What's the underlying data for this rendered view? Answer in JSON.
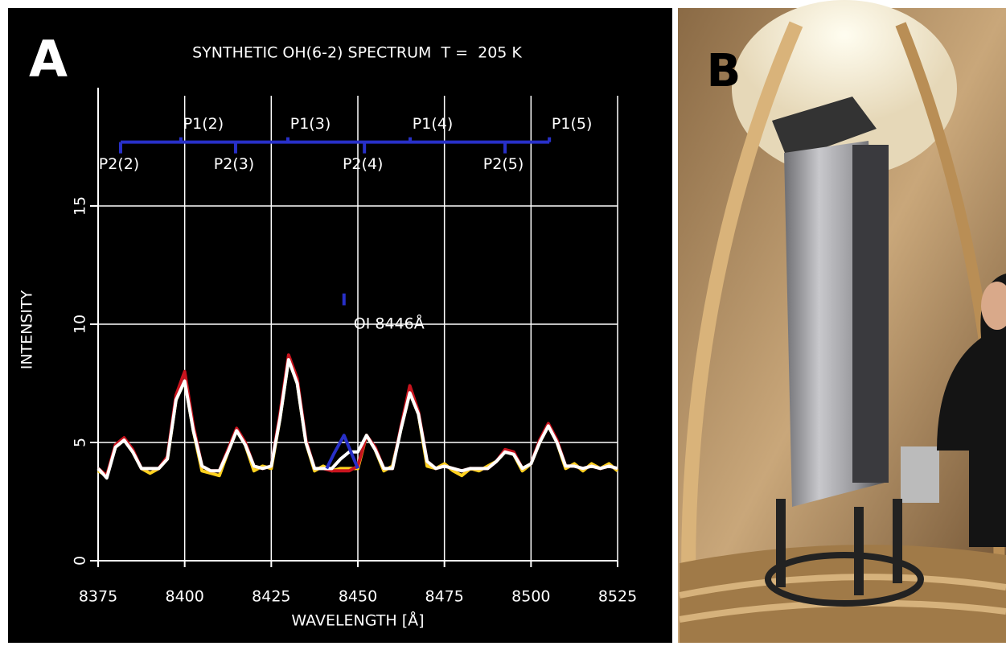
{
  "chart_data": {
    "type": "line",
    "panel_labels": [
      "A",
      "B"
    ],
    "title": "SYNTHETIC OH(6-2) SPECTRUM  T =  205 K",
    "xlabel": "WAVELENGTH [Å]",
    "ylabel": "INTENSITY",
    "xlim": [
      8375,
      8525
    ],
    "xticks": [
      8375,
      8400,
      8425,
      8450,
      8475,
      8500,
      8525
    ],
    "ylim": [
      0,
      20
    ],
    "yticks": [
      0,
      5,
      10,
      15
    ],
    "grid": true,
    "series": [
      {
        "color": "#ffd21f",
        "x": [
          8375,
          8377.5,
          8380,
          8382.5,
          8385,
          8387.5,
          8390,
          8392.5,
          8395,
          8397.5,
          8400,
          8402.5,
          8405,
          8407.5,
          8410,
          8412.5,
          8415,
          8417.5,
          8420,
          8422.5,
          8425,
          8427.5,
          8430,
          8432.5,
          8435,
          8437.5,
          8440,
          8442.5,
          8445,
          8447.5,
          8450,
          8452.5,
          8455,
          8457.5,
          8460,
          8462.5,
          8465,
          8467.5,
          8470,
          8472.5,
          8475,
          8477.5,
          8480,
          8482.5,
          8485,
          8487.5,
          8490,
          8492.5,
          8495,
          8497.5,
          8500,
          8502.5,
          8505,
          8507.5,
          8510,
          8512.5,
          8515,
          8517.5,
          8520,
          8522.5,
          8525
        ],
        "values": [
          3.8,
          3.6,
          4.8,
          5.1,
          4.6,
          3.9,
          3.7,
          3.9,
          4.3,
          6.8,
          7.6,
          5.5,
          3.8,
          3.7,
          3.6,
          4.6,
          5.5,
          4.9,
          3.8,
          4.0,
          3.9,
          6.0,
          8.5,
          7.5,
          5.0,
          3.8,
          4.0,
          3.8,
          3.9,
          3.9,
          3.9,
          5.3,
          4.7,
          3.8,
          4.0,
          5.6,
          7.1,
          6.2,
          4.0,
          3.9,
          4.1,
          3.8,
          3.6,
          3.9,
          3.8,
          4.0,
          4.2,
          4.6,
          4.5,
          3.8,
          4.1,
          5.0,
          5.7,
          5.0,
          3.9,
          4.1,
          3.8,
          4.1,
          3.9,
          4.1,
          3.8
        ]
      },
      {
        "color": "#c8141e",
        "x": [
          8375,
          8377.5,
          8380,
          8382.5,
          8385,
          8387.5,
          8390,
          8392.5,
          8395,
          8397.5,
          8400,
          8402.5,
          8405,
          8407.5,
          8410,
          8412.5,
          8415,
          8417.5,
          8420,
          8422.5,
          8425,
          8427.5,
          8430,
          8432.5,
          8435,
          8437.5,
          8440,
          8442.5,
          8445,
          8447.5,
          8450,
          8452.5,
          8455,
          8457.5,
          8460,
          8462.5,
          8465,
          8467.5,
          8470,
          8472.5,
          8475,
          8477.5,
          8480,
          8482.5,
          8485,
          8487.5,
          8490,
          8492.5,
          8495,
          8497.5,
          8500,
          8502.5,
          8505,
          8507.5,
          8510,
          8512.5,
          8515,
          8517.5,
          8520,
          8522.5,
          8525
        ],
        "values": [
          3.9,
          3.6,
          4.9,
          5.2,
          4.7,
          3.9,
          3.9,
          3.9,
          4.4,
          7.0,
          8.0,
          5.7,
          4.0,
          3.8,
          3.8,
          4.7,
          5.6,
          5.0,
          4.0,
          3.9,
          4.0,
          6.2,
          8.7,
          7.7,
          5.1,
          3.9,
          3.9,
          3.8,
          3.8,
          3.8,
          4.0,
          5.3,
          4.8,
          3.9,
          3.9,
          5.7,
          7.4,
          6.3,
          4.2,
          3.9,
          4.0,
          3.9,
          3.8,
          3.9,
          3.9,
          3.9,
          4.2,
          4.7,
          4.6,
          3.9,
          4.1,
          5.1,
          5.8,
          5.1,
          4.0,
          4.0,
          3.9,
          4.0,
          3.9,
          4.0,
          3.9
        ]
      },
      {
        "color": "#ffffff",
        "x": [
          8375,
          8377.5,
          8380,
          8382.5,
          8385,
          8387.5,
          8390,
          8392.5,
          8395,
          8397.5,
          8400,
          8402.5,
          8405,
          8407.5,
          8410,
          8412.5,
          8415,
          8417.5,
          8420,
          8422.5,
          8425,
          8427.5,
          8430,
          8432.5,
          8435,
          8437.5,
          8440,
          8442.5,
          8445,
          8447.5,
          8450,
          8452.5,
          8455,
          8457.5,
          8460,
          8462.5,
          8465,
          8467.5,
          8470,
          8472.5,
          8475,
          8477.5,
          8480,
          8482.5,
          8485,
          8487.5,
          8490,
          8492.5,
          8495,
          8497.5,
          8500,
          8502.5,
          8505,
          8507.5,
          8510,
          8512.5,
          8515,
          8517.5,
          8520,
          8522.5,
          8525
        ],
        "values": [
          3.9,
          3.5,
          4.8,
          5.1,
          4.6,
          3.9,
          3.9,
          3.9,
          4.3,
          6.8,
          7.6,
          5.5,
          4.0,
          3.8,
          3.8,
          4.6,
          5.5,
          4.9,
          4.0,
          3.9,
          4.0,
          6.0,
          8.5,
          7.5,
          5.0,
          3.9,
          3.9,
          3.9,
          4.3,
          4.6,
          4.6,
          5.3,
          4.7,
          3.9,
          3.9,
          5.6,
          7.1,
          6.2,
          4.2,
          3.9,
          4.0,
          3.9,
          3.8,
          3.9,
          3.9,
          3.9,
          4.2,
          4.6,
          4.5,
          3.9,
          4.1,
          5.0,
          5.7,
          5.0,
          4.0,
          4.0,
          3.9,
          4.0,
          3.9,
          4.0,
          3.9
        ]
      },
      {
        "color": "#2830c8",
        "x": [
          8441,
          8443,
          8446,
          8448,
          8450
        ],
        "values": [
          3.9,
          4.5,
          5.3,
          4.6,
          3.9
        ]
      }
    ],
    "branch_level": 17.7,
    "branch_color": "#2830c8",
    "branches": [
      {
        "text": "P2(2)",
        "x": 8381.5,
        "side": "below"
      },
      {
        "text": "P1(2)",
        "x": 8398.9,
        "side": "above"
      },
      {
        "text": "P2(3)",
        "x": 8414.7,
        "side": "below"
      },
      {
        "text": "P1(3)",
        "x": 8429.8,
        "side": "above"
      },
      {
        "text": "P2(4)",
        "x": 8451.9,
        "side": "below"
      },
      {
        "text": "P1(4)",
        "x": 8465.1,
        "side": "above"
      },
      {
        "text": "P2(5)",
        "x": 8492.5,
        "side": "below"
      },
      {
        "text": "P1(5)",
        "x": 8505.3,
        "side": "above"
      }
    ],
    "line_marker": {
      "text": "OI 8446Å",
      "x": 8446,
      "y": [
        10.8,
        11.3
      ],
      "label_y": 10
    }
  }
}
